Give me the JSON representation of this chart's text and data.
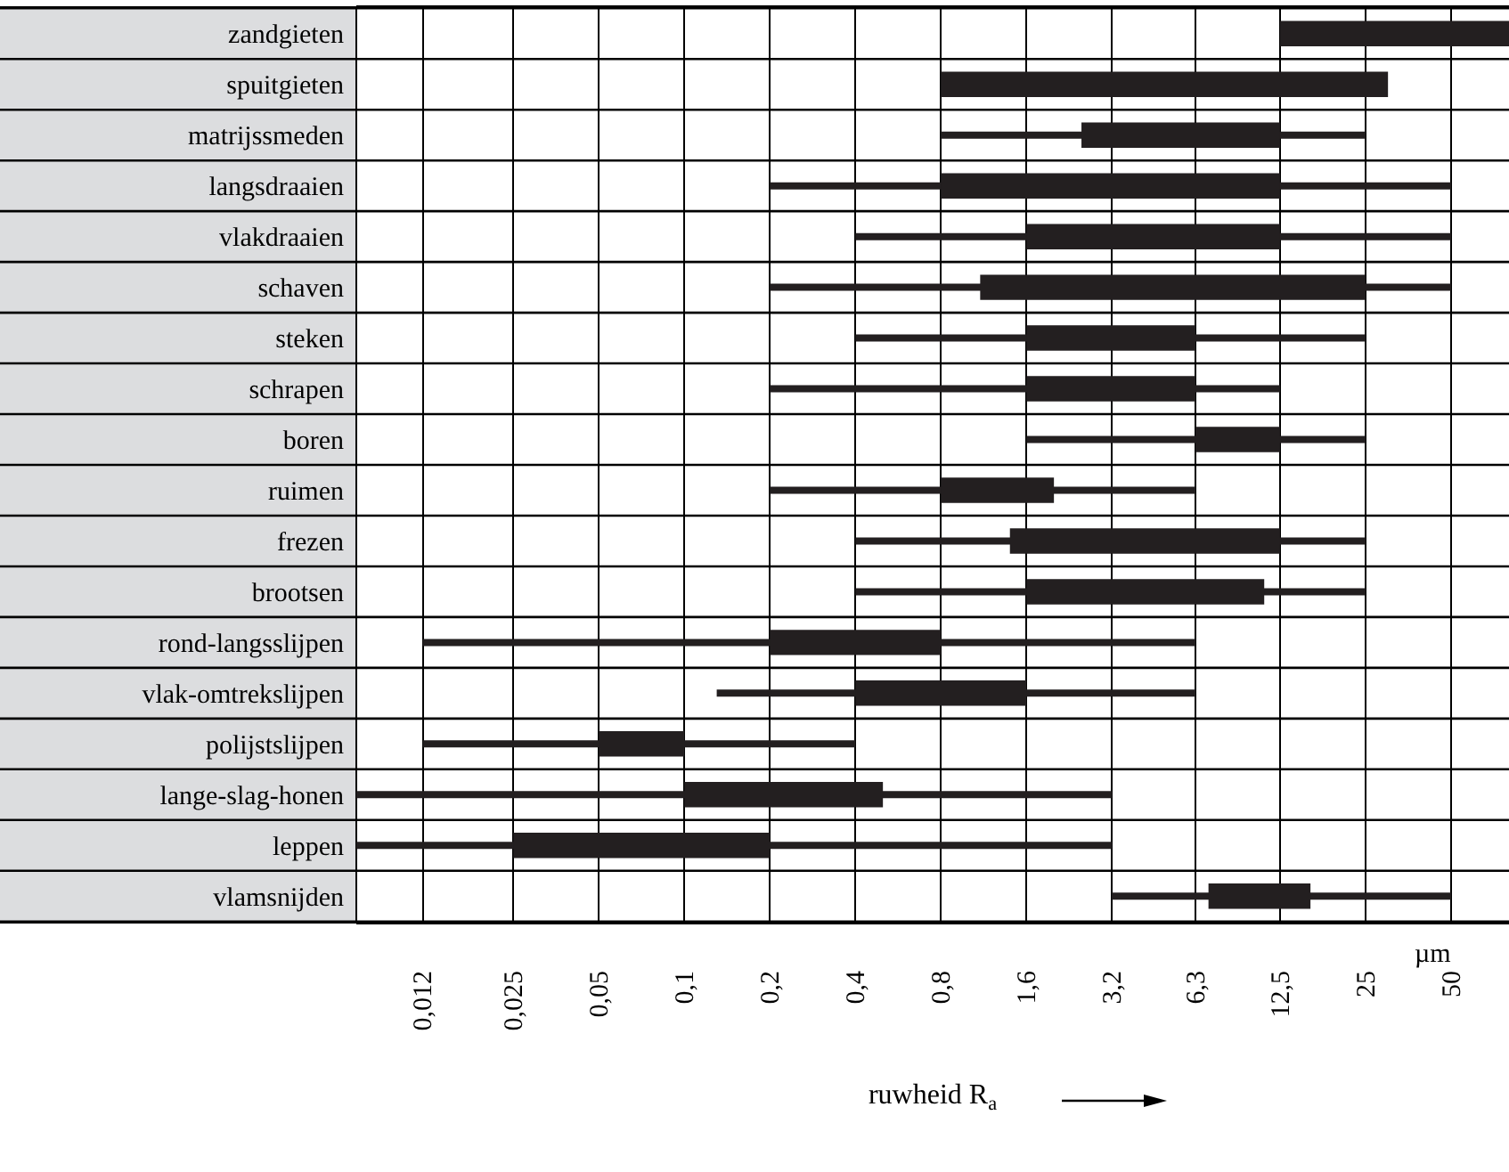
{
  "chart_data": {
    "type": "bar",
    "orientation": "horizontal",
    "log": "x",
    "grid": true,
    "xlabel": "ruwheid R$_{a}$",
    "annotations": [
      "µm"
    ],
    "categories": [
      "zandgieten",
      "spuitgieten",
      "matrijssmeden",
      "langsdraaien",
      "vlakdraaien",
      "schaven",
      "steken",
      "schrapen",
      "boren",
      "ruimen",
      "frezen",
      "brootsen",
      "rond-langsslijpen",
      "vlak-omtrekslijpen",
      "polijstslijpen",
      "lange-slag-honen",
      "leppen",
      "vlamsnijden"
    ],
    "xlim": [
      0.007,
      80
    ],
    "xticks": [
      {
        "value": 0.012,
        "label": "0,012"
      },
      {
        "value": 0.025,
        "label": "0,025"
      },
      {
        "value": 0.05,
        "label": "0,05"
      },
      {
        "value": 0.1,
        "label": "0,1"
      },
      {
        "value": 0.2,
        "label": "0,2"
      },
      {
        "value": 0.4,
        "label": "0,4"
      },
      {
        "value": 0.8,
        "label": "0,8"
      },
      {
        "value": 1.6,
        "label": "1,6"
      },
      {
        "value": 3.2,
        "label": "3,2"
      },
      {
        "value": 6.3,
        "label": "6,3"
      },
      {
        "value": 12.5,
        "label": "12,5"
      },
      25,
      50
    ],
    "series": [
      {
        "color": "#231f20",
        "base": [
          null,
          null,
          0.8,
          0.2,
          0.4,
          0.2,
          0.4,
          0.2,
          1.6,
          0.2,
          0.4,
          0.4,
          0.012,
          0.13,
          0.012,
          0.007,
          0.007,
          3.2
        ],
        "values": [
          null,
          null,
          24.2,
          49.8,
          49.6,
          49.8,
          24.6,
          12.3,
          23.4,
          6.1,
          24.6,
          24.6,
          6.288,
          6.17,
          0.388,
          3.193,
          3.193,
          46.8
        ]
      },
      {
        "color": "#231f20",
        "base": [
          12.5,
          0.8,
          2.5,
          0.8,
          1.6,
          1.1,
          1.6,
          1.6,
          6.3,
          0.8,
          1.4,
          1.6,
          0.2,
          0.4,
          0.05,
          0.1,
          0.025,
          7
        ],
        "values": [
          67.5,
          29.2,
          10,
          11.7,
          10.9,
          23.9,
          4.7,
          4.7,
          6.2,
          1.2,
          11.1,
          9.4,
          0.6,
          1.2,
          0.05,
          0.4,
          0.175,
          9
        ]
      }
    ]
  }
}
